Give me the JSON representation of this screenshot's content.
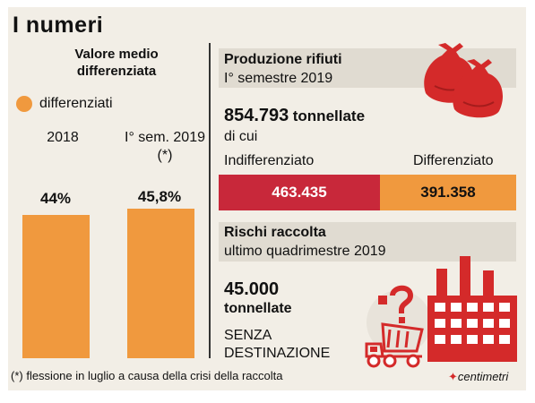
{
  "header": {
    "title": "I numeri"
  },
  "chart_data": {
    "type": "bar",
    "title": "Valore medio differenziata",
    "legend": [
      "differenziati"
    ],
    "categories": [
      "2018",
      "I° sem. 2019 (*)"
    ],
    "series": [
      {
        "name": "differenziati",
        "values": [
          44,
          45.8
        ]
      }
    ],
    "value_labels": [
      "44%",
      "45,8%"
    ],
    "ylim": [
      0,
      48
    ],
    "color": "#f0993e"
  },
  "production": {
    "title": "Produzione rifiuti",
    "subtitle": "I° semestre 2019",
    "total_value": "854.793",
    "total_unit": "tonnellate",
    "of_which": "di cui",
    "indiff_label": "Indifferenziato",
    "diff_label": "Differenziato",
    "indiff_value": "463.435",
    "diff_value": "391.358",
    "indiff_num": 463435,
    "diff_num": 391358,
    "indiff_color": "#c8283a",
    "diff_color": "#f0993e"
  },
  "risks": {
    "title": "Rischi raccolta",
    "subtitle": "ultimo quadrimestre 2019",
    "value": "45.000",
    "unit": "tonnellate",
    "line1": "SENZA",
    "line2": "DESTINAZIONE"
  },
  "footer": {
    "note": "(*) flessione in luglio a causa della crisi della raccolta",
    "brand": "centimetri"
  },
  "icons": [
    "trash-bags-icon",
    "factory-icon",
    "dump-truck-icon",
    "question-mark-icon"
  ],
  "colors": {
    "accent_red": "#c8283a",
    "accent_orange": "#f0993e",
    "icon_red": "#d42a2a"
  }
}
